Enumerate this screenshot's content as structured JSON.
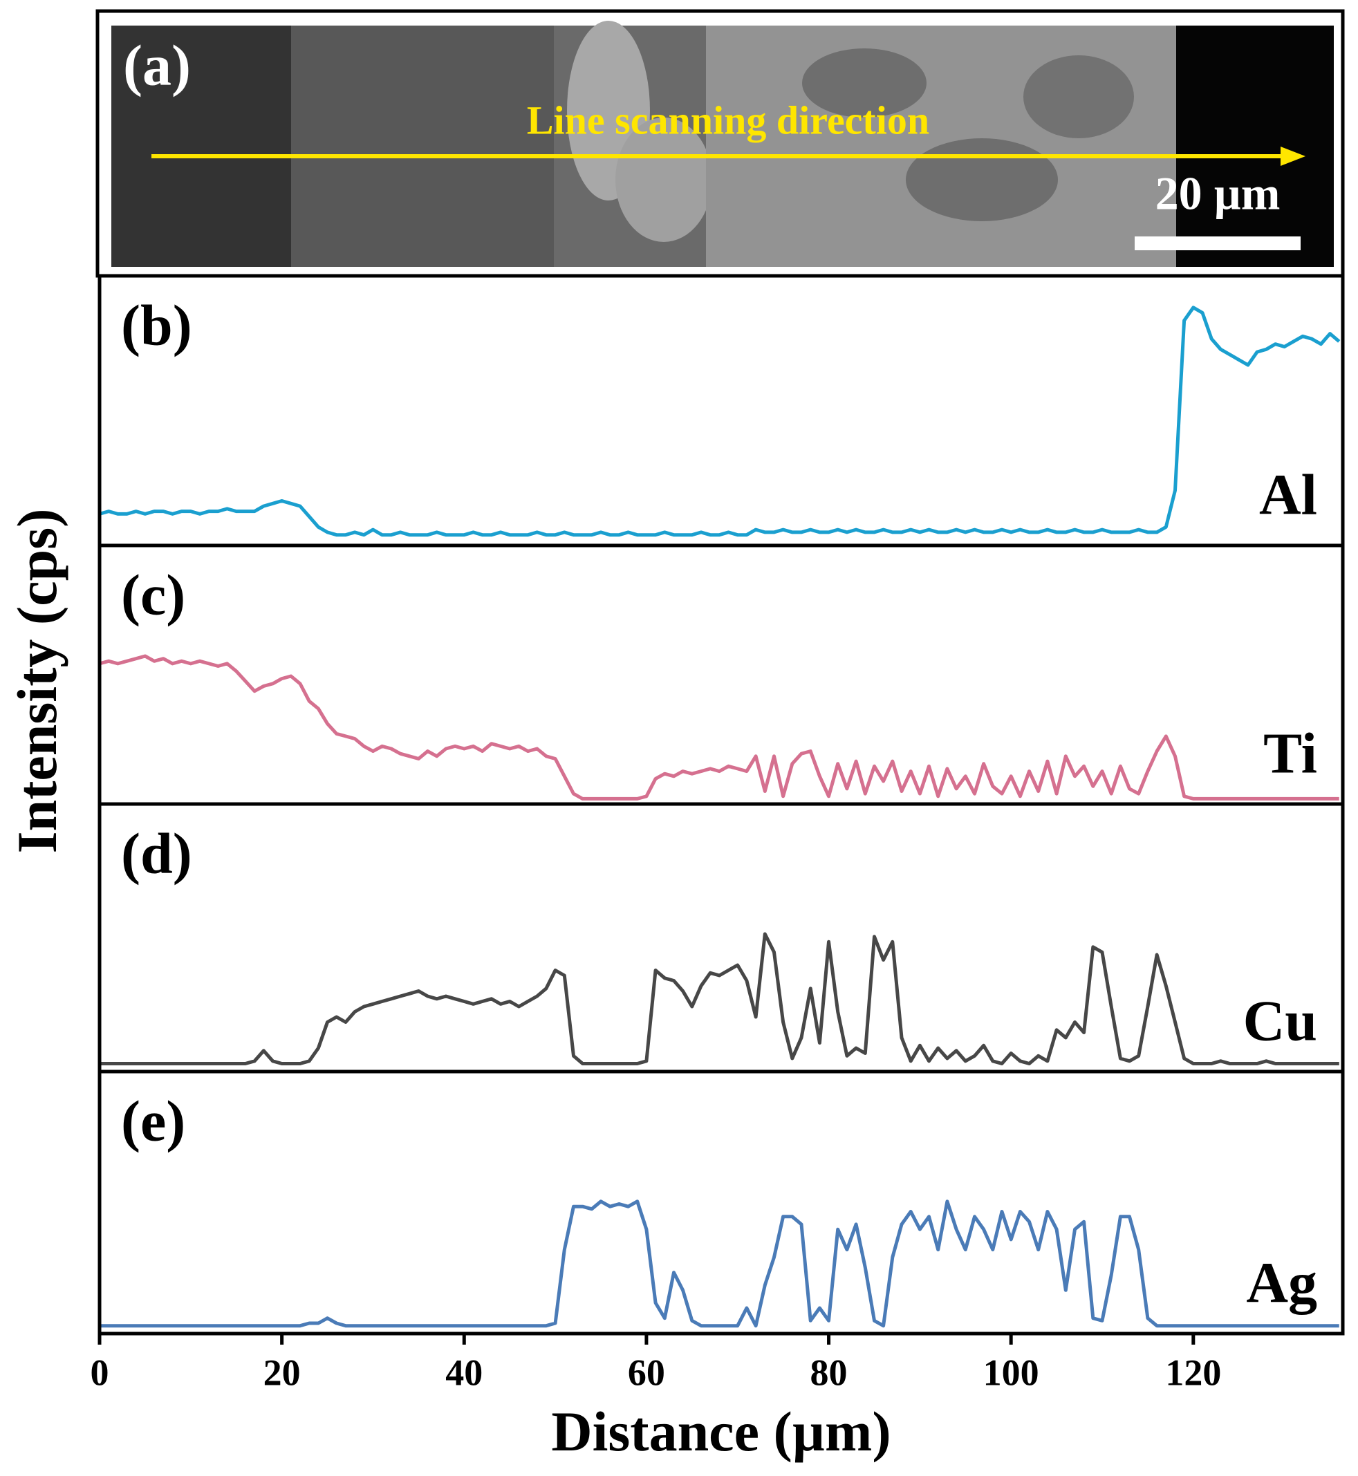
{
  "image": {
    "label": "(a)",
    "annotation": "Line scanning direction",
    "scale_bar": "20 µm"
  },
  "chart_data": {
    "type": "line",
    "xlabel": "Distance (µm)",
    "ylabel": "Intensity (cps)",
    "xlim": [
      0,
      136.4
    ],
    "xticks": [
      0,
      20,
      40,
      60,
      80,
      100,
      120
    ],
    "ylim": [
      0,
      100
    ],
    "x": [
      0,
      1,
      2,
      3,
      4,
      5,
      6,
      7,
      8,
      9,
      10,
      11,
      12,
      13,
      14,
      15,
      16,
      17,
      18,
      19,
      20,
      21,
      22,
      23,
      24,
      25,
      26,
      27,
      28,
      29,
      30,
      31,
      32,
      33,
      34,
      35,
      36,
      37,
      38,
      39,
      40,
      41,
      42,
      43,
      44,
      45,
      46,
      47,
      48,
      49,
      50,
      51,
      52,
      53,
      54,
      55,
      56,
      57,
      58,
      59,
      60,
      61,
      62,
      63,
      64,
      65,
      66,
      67,
      68,
      69,
      70,
      71,
      72,
      73,
      74,
      75,
      76,
      77,
      78,
      79,
      80,
      81,
      82,
      83,
      84,
      85,
      86,
      87,
      88,
      89,
      90,
      91,
      92,
      93,
      94,
      95,
      96,
      97,
      98,
      99,
      100,
      101,
      102,
      103,
      104,
      105,
      106,
      107,
      108,
      109,
      110,
      111,
      112,
      113,
      114,
      115,
      116,
      117,
      118,
      119,
      120,
      121,
      122,
      123,
      124,
      125,
      126,
      127,
      128,
      129,
      130,
      131,
      132,
      133,
      134,
      135,
      136
    ],
    "series": [
      {
        "name": "Al",
        "panel_label": "(b)",
        "color": "#1a9fcf",
        "values": [
          11,
          12,
          11,
          11,
          12,
          11,
          12,
          12,
          11,
          12,
          12,
          11,
          12,
          12,
          13,
          12,
          12,
          12,
          14,
          15,
          16,
          15,
          14,
          10,
          6,
          4,
          3,
          3,
          4,
          3,
          5,
          3,
          3,
          4,
          3,
          3,
          3,
          4,
          3,
          3,
          3,
          4,
          3,
          3,
          4,
          3,
          3,
          3,
          4,
          3,
          3,
          4,
          3,
          3,
          3,
          4,
          3,
          3,
          4,
          3,
          3,
          3,
          4,
          3,
          3,
          3,
          4,
          3,
          3,
          4,
          3,
          3,
          5,
          4,
          4,
          5,
          4,
          4,
          5,
          4,
          4,
          5,
          4,
          5,
          4,
          4,
          5,
          4,
          4,
          5,
          4,
          5,
          4,
          4,
          5,
          4,
          5,
          4,
          4,
          5,
          4,
          5,
          4,
          4,
          5,
          4,
          4,
          5,
          4,
          4,
          5,
          4,
          4,
          4,
          5,
          4,
          4,
          6,
          20,
          85,
          90,
          88,
          78,
          74,
          72,
          70,
          68,
          73,
          74,
          76,
          75,
          77,
          79,
          78,
          76,
          80,
          77
        ]
      },
      {
        "name": "Ti",
        "panel_label": "(c)",
        "color": "#d5708f",
        "values": [
          55,
          56,
          55,
          56,
          57,
          58,
          56,
          57,
          55,
          56,
          55,
          56,
          55,
          54,
          55,
          52,
          48,
          44,
          46,
          47,
          49,
          50,
          47,
          40,
          37,
          31,
          27,
          26,
          25,
          22,
          20,
          22,
          21,
          19,
          18,
          17,
          20,
          18,
          21,
          22,
          21,
          22,
          20,
          23,
          22,
          21,
          22,
          20,
          21,
          18,
          17,
          10,
          3,
          1,
          1,
          1,
          1,
          1,
          1,
          1,
          2,
          9,
          11,
          10,
          12,
          11,
          12,
          13,
          12,
          14,
          13,
          12,
          18,
          4,
          18,
          2,
          15,
          19,
          20,
          10,
          2,
          15,
          5,
          16,
          3,
          14,
          8,
          16,
          4,
          12,
          3,
          14,
          2,
          13,
          5,
          10,
          3,
          15,
          6,
          3,
          10,
          2,
          12,
          4,
          16,
          3,
          18,
          10,
          14,
          6,
          12,
          3,
          14,
          5,
          3,
          12,
          20,
          26,
          18,
          2,
          1,
          1,
          1,
          1,
          1,
          1,
          1,
          1,
          1,
          1,
          1,
          1,
          1,
          1,
          1,
          1,
          1
        ]
      },
      {
        "name": "Cu",
        "panel_label": "(d)",
        "color": "#474747",
        "values": [
          2,
          2,
          2,
          2,
          2,
          2,
          2,
          2,
          2,
          2,
          2,
          2,
          2,
          2,
          2,
          2,
          2,
          3,
          7,
          3,
          2,
          2,
          2,
          3,
          8,
          18,
          20,
          18,
          22,
          24,
          25,
          26,
          27,
          28,
          29,
          30,
          28,
          27,
          28,
          27,
          26,
          25,
          26,
          27,
          25,
          26,
          24,
          26,
          28,
          31,
          38,
          36,
          5,
          2,
          2,
          2,
          2,
          2,
          2,
          2,
          3,
          38,
          35,
          34,
          30,
          24,
          32,
          37,
          36,
          38,
          40,
          34,
          20,
          52,
          45,
          18,
          4,
          12,
          31,
          10,
          49,
          22,
          5,
          8,
          6,
          51,
          42,
          49,
          12,
          3,
          9,
          3,
          8,
          4,
          7,
          3,
          5,
          9,
          3,
          2,
          6,
          3,
          2,
          5,
          3,
          15,
          12,
          18,
          14,
          47,
          45,
          24,
          4,
          3,
          5,
          24,
          44,
          32,
          18,
          4,
          2,
          2,
          2,
          3,
          2,
          2,
          2,
          2,
          3,
          2,
          2,
          2,
          2,
          2,
          2,
          2,
          2
        ]
      },
      {
        "name": "Ag",
        "panel_label": "(e)",
        "color": "#4a7bb7",
        "values": [
          2,
          2,
          2,
          2,
          2,
          2,
          2,
          2,
          2,
          2,
          2,
          2,
          2,
          2,
          2,
          2,
          2,
          2,
          2,
          2,
          2,
          2,
          2,
          3,
          3,
          5,
          3,
          2,
          2,
          2,
          2,
          2,
          2,
          2,
          2,
          2,
          2,
          2,
          2,
          2,
          2,
          2,
          2,
          2,
          2,
          2,
          2,
          2,
          2,
          2,
          3,
          32,
          49,
          49,
          48,
          51,
          49,
          50,
          49,
          51,
          40,
          11,
          5,
          23,
          16,
          4,
          2,
          2,
          2,
          2,
          2,
          9,
          2,
          18,
          29,
          45,
          45,
          42,
          4,
          9,
          4,
          40,
          32,
          42,
          25,
          4,
          2,
          29,
          42,
          47,
          40,
          45,
          32,
          51,
          40,
          32,
          45,
          40,
          32,
          47,
          36,
          47,
          43,
          32,
          47,
          40,
          16,
          40,
          43,
          5,
          4,
          22,
          45,
          45,
          32,
          5,
          2,
          2,
          2,
          2,
          2,
          2,
          2,
          2,
          2,
          2,
          2,
          2,
          2,
          2,
          2,
          2,
          2,
          2,
          2,
          2,
          2
        ]
      }
    ]
  }
}
